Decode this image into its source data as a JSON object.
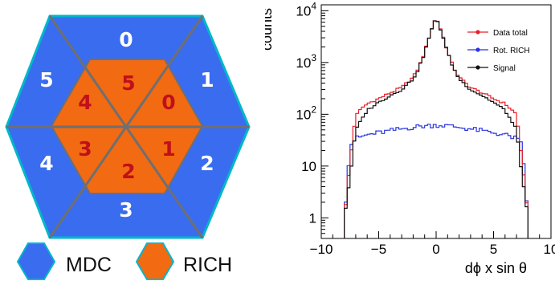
{
  "diagram": {
    "outer_sectors": [
      {
        "label": "0"
      },
      {
        "label": "1"
      },
      {
        "label": "2"
      },
      {
        "label": "3"
      },
      {
        "label": "4"
      },
      {
        "label": "5"
      }
    ],
    "inner_sectors": [
      {
        "label": "0"
      },
      {
        "label": "1"
      },
      {
        "label": "2"
      },
      {
        "label": "3"
      },
      {
        "label": "4"
      },
      {
        "label": "5"
      }
    ],
    "legend": [
      {
        "name": "MDC",
        "color": "#3a6cf0"
      },
      {
        "name": "RICH",
        "color": "#f26a12"
      }
    ],
    "colors": {
      "mdc": "#3a6cf0",
      "rich": "#f26a12",
      "outline": "#00b7c9",
      "divider": "#6f6f6f",
      "outer_text": "#ffffff",
      "inner_text": "#c0101a"
    }
  },
  "chart_data": {
    "type": "line",
    "xlabel": "dϕ x sin θ",
    "ylabel": "counts",
    "xlim": [
      -10,
      10
    ],
    "ylim": [
      0.4,
      13000
    ],
    "yscale": "log",
    "xticks": [
      {
        "value": -10,
        "label": "−10"
      },
      {
        "value": -5,
        "label": "−5"
      },
      {
        "value": 0,
        "label": "0"
      },
      {
        "value": 5,
        "label": "5"
      },
      {
        "value": 10,
        "label": "10"
      }
    ],
    "yticks": [
      {
        "value": 1,
        "label": "1"
      },
      {
        "value": 10,
        "label": "10"
      },
      {
        "value": 100,
        "label": "10",
        "exp": "2"
      },
      {
        "value": 1000,
        "label": "10",
        "exp": "3"
      },
      {
        "value": 10000,
        "label": "10",
        "exp": "4"
      }
    ],
    "legend_position": "top-right",
    "series": [
      {
        "name": "Data total",
        "color": "#e8202a",
        "x": [
          -8.0,
          -7.5,
          -7.0,
          -6.0,
          -5.0,
          -4.0,
          -3.0,
          -2.0,
          -1.5,
          -1.0,
          -0.5,
          0.0,
          0.5,
          1.0,
          1.5,
          2.0,
          3.0,
          4.0,
          5.0,
          6.0,
          7.0,
          7.5,
          8.0
        ],
        "y": [
          1.0,
          12,
          100,
          160,
          200,
          260,
          330,
          520,
          820,
          1600,
          3800,
          7500,
          3800,
          1600,
          820,
          520,
          330,
          260,
          200,
          160,
          100,
          12,
          1.0
        ]
      },
      {
        "name": "Rot. RICH",
        "color": "#2a35e0",
        "x": [
          -8.0,
          -7.5,
          -7.0,
          -6.0,
          -5.0,
          -4.0,
          -3.0,
          -2.0,
          -1.0,
          0.0,
          1.0,
          2.0,
          3.0,
          4.0,
          5.0,
          6.0,
          7.0,
          7.5,
          8.0
        ],
        "y": [
          1.0,
          25,
          34,
          40,
          44,
          48,
          52,
          56,
          60,
          62,
          60,
          56,
          52,
          48,
          44,
          40,
          34,
          25,
          1.0
        ]
      },
      {
        "name": "Signal",
        "color": "#111111",
        "x": [
          -8.0,
          -7.5,
          -7.0,
          -6.0,
          -5.0,
          -4.0,
          -3.0,
          -2.0,
          -1.5,
          -1.0,
          -0.5,
          0.0,
          0.5,
          1.0,
          1.5,
          2.0,
          3.0,
          4.0,
          5.0,
          6.0,
          7.0,
          7.5,
          8.0
        ],
        "y": [
          1.0,
          6,
          50,
          120,
          170,
          230,
          300,
          480,
          780,
          1550,
          3700,
          7300,
          3700,
          1550,
          780,
          480,
          300,
          230,
          170,
          120,
          50,
          6,
          1.0
        ]
      }
    ]
  }
}
